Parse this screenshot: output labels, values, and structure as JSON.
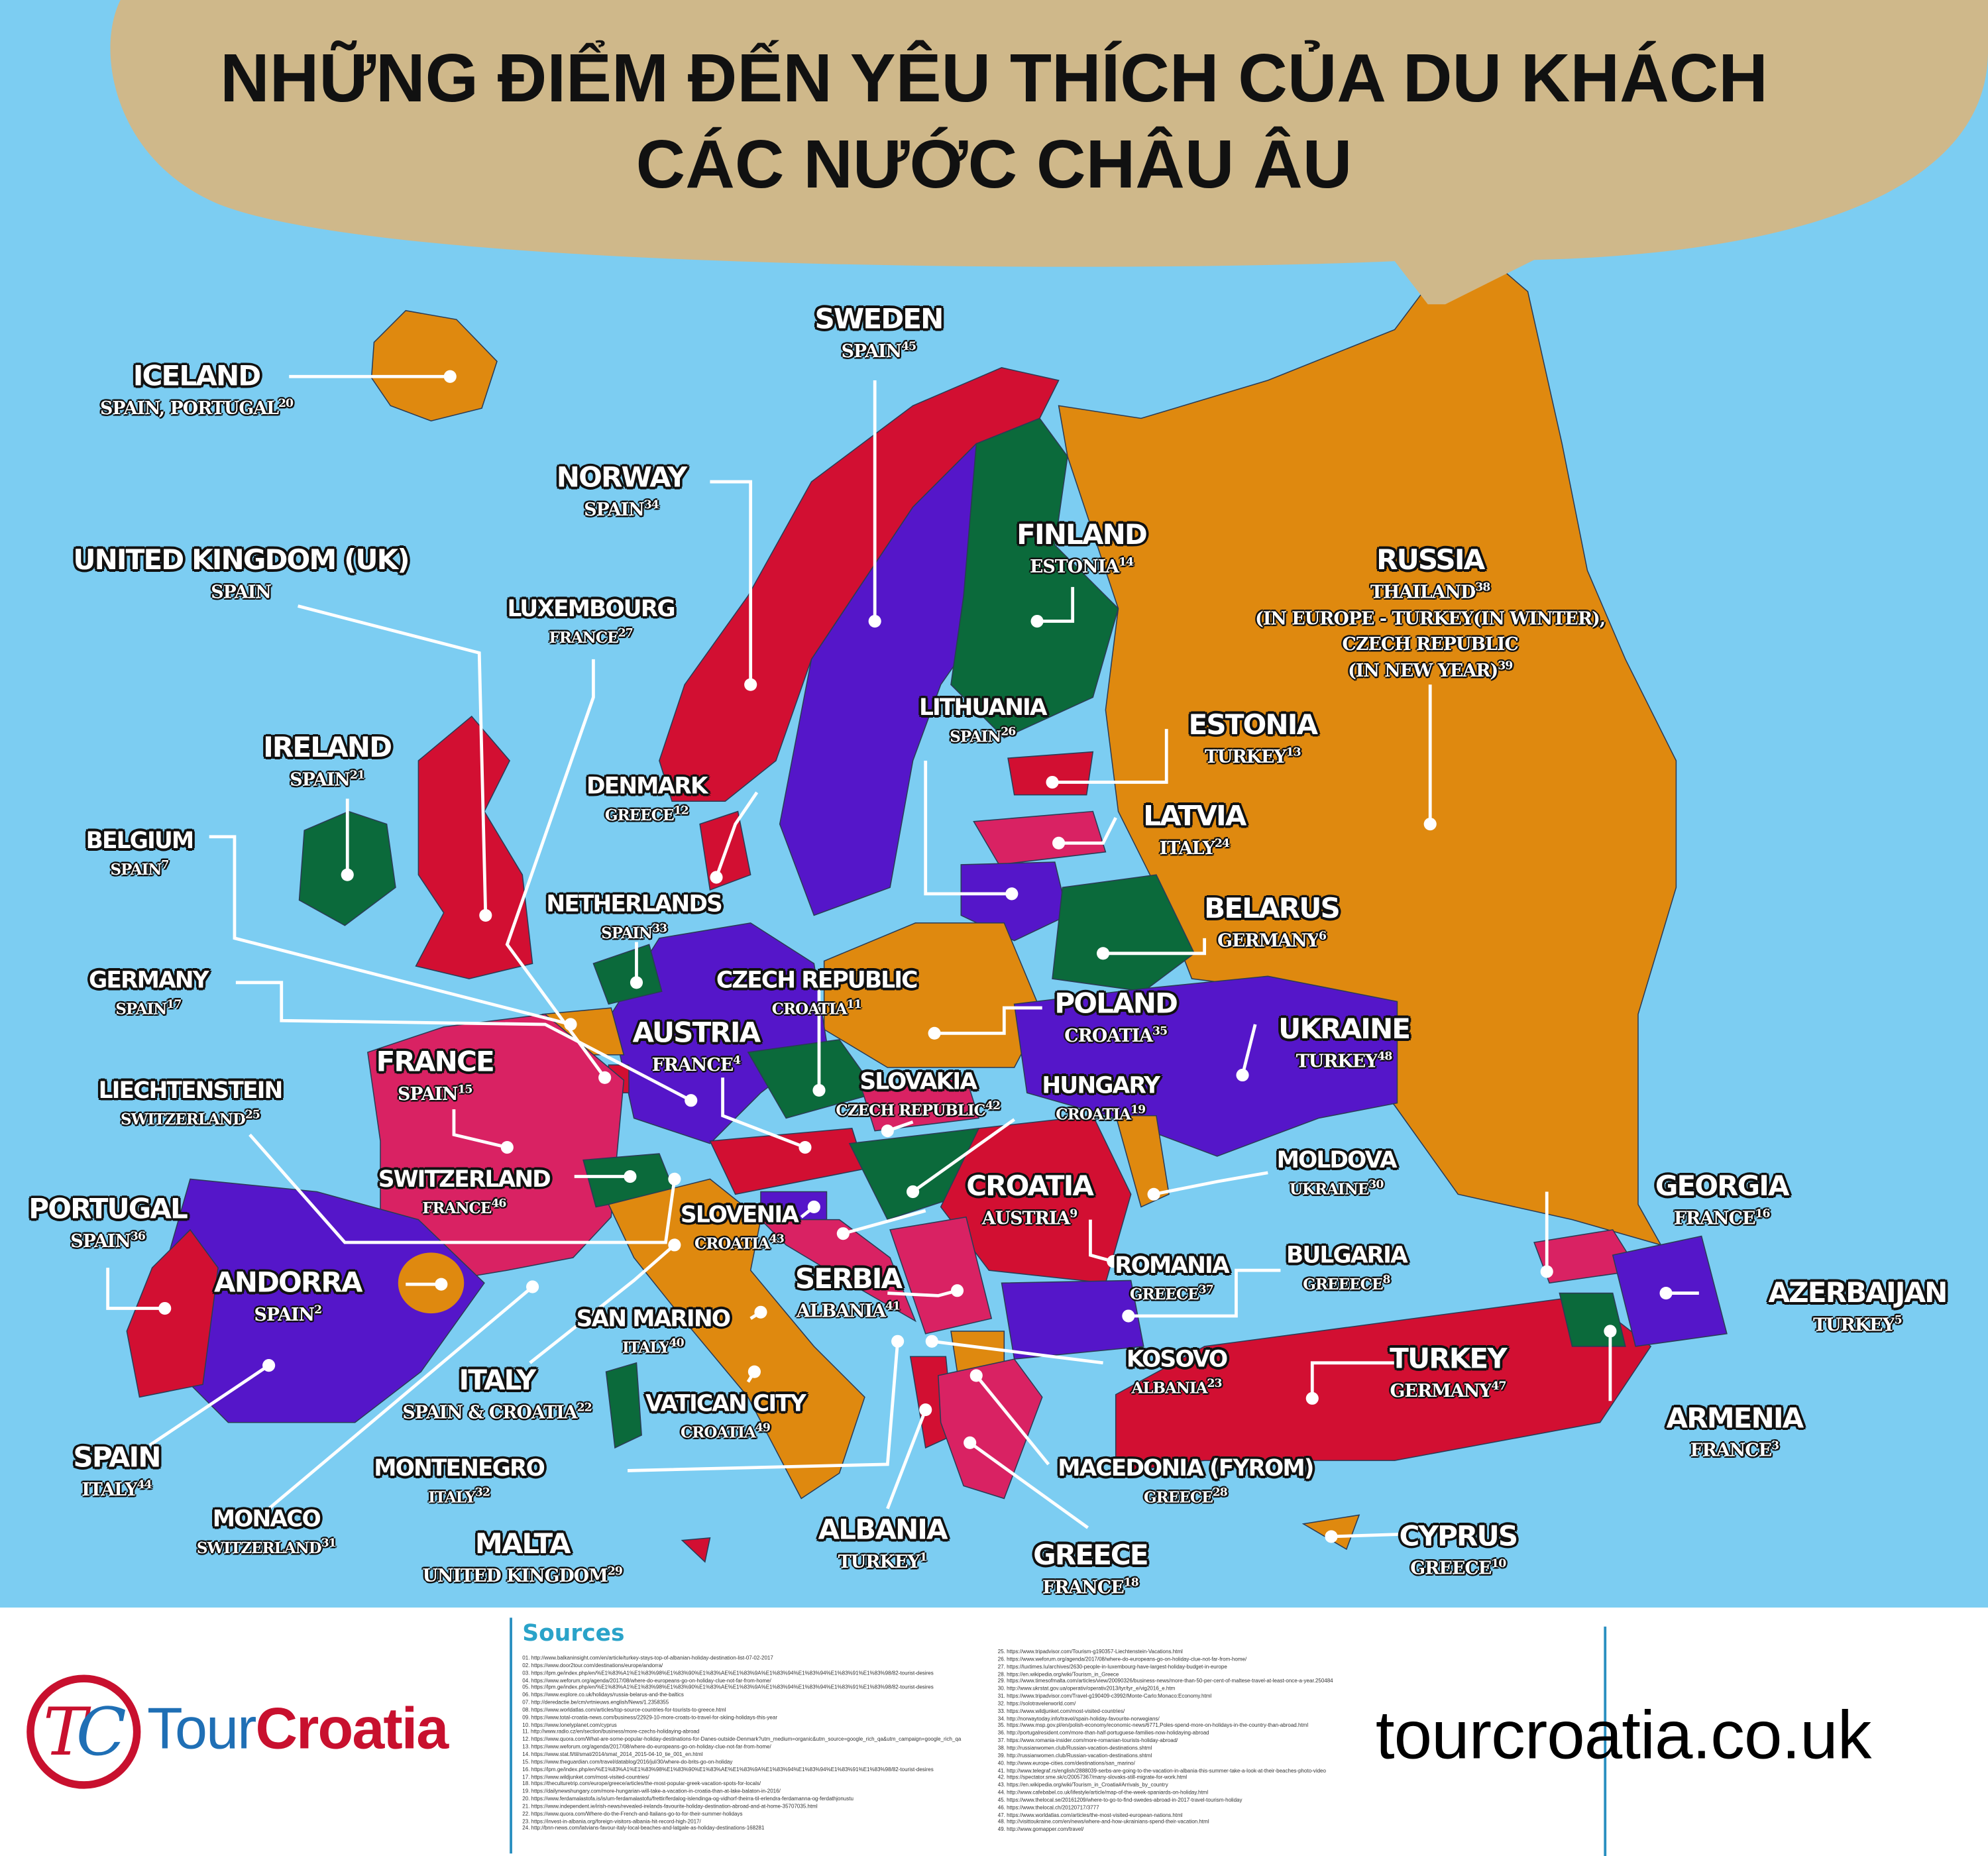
{
  "title": {
    "line1": "NHỮNG ĐIỂM ĐẾN YÊU THÍCH CỦA DU KHÁCH",
    "line2": "CÁC NƯỚC CHÂU ÂU"
  },
  "colors": {
    "sea": "#7ccdf2",
    "bubble": "#cfb88a",
    "orange": "#df890f",
    "red": "#d20f32",
    "purple": "#5516c9",
    "green": "#0b6a3b",
    "pink": "#d92263"
  },
  "countries": [
    {
      "name": "ICELAND",
      "lines": [
        {
          "text": "SPAIN, PORTUGAL",
          "ref": "20"
        }
      ]
    },
    {
      "name": "SWEDEN",
      "lines": [
        {
          "text": "SPAIN",
          "ref": "45"
        }
      ]
    },
    {
      "name": "NORWAY",
      "lines": [
        {
          "text": "SPAIN",
          "ref": "34"
        }
      ]
    },
    {
      "name": "UNITED KINGDOM (UK)",
      "lines": [
        {
          "text": "SPAIN",
          "ref": ""
        }
      ]
    },
    {
      "name": "FINLAND",
      "lines": [
        {
          "text": "ESTONIA",
          "ref": "14"
        }
      ]
    },
    {
      "name": "RUSSIA",
      "lines": [
        {
          "text": "THAILAND",
          "ref": "38"
        },
        {
          "text": "(IN EUROPE - TURKEY(IN WINTER),",
          "ref": ""
        },
        {
          "text": "CZECH REPUBLIC",
          "ref": ""
        },
        {
          "text": "(IN NEW YEAR)",
          "ref": "39"
        }
      ]
    },
    {
      "name": "LUXEMBOURG",
      "lines": [
        {
          "text": "FRANCE",
          "ref": "27"
        }
      ]
    },
    {
      "name": "IRELAND",
      "lines": [
        {
          "text": "SPAIN",
          "ref": "21"
        }
      ]
    },
    {
      "name": "LITHUANIA",
      "lines": [
        {
          "text": "SPAIN",
          "ref": "26"
        }
      ]
    },
    {
      "name": "ESTONIA",
      "lines": [
        {
          "text": "TURKEY",
          "ref": "13"
        }
      ]
    },
    {
      "name": "DENMARK",
      "lines": [
        {
          "text": "GREECE",
          "ref": "12"
        }
      ]
    },
    {
      "name": "BELGIUM",
      "lines": [
        {
          "text": "SPAIN",
          "ref": "7"
        }
      ]
    },
    {
      "name": "LATVIA",
      "lines": [
        {
          "text": "ITALY",
          "ref": "24"
        }
      ]
    },
    {
      "name": "NETHERLANDS",
      "lines": [
        {
          "text": "SPAIN",
          "ref": "33"
        }
      ]
    },
    {
      "name": "BELARUS",
      "lines": [
        {
          "text": "GERMANY",
          "ref": "6"
        }
      ]
    },
    {
      "name": "GERMANY",
      "lines": [
        {
          "text": "SPAIN",
          "ref": "17"
        }
      ]
    },
    {
      "name": "CZECH REPUBLIC",
      "lines": [
        {
          "text": "CROATIA",
          "ref": "11"
        }
      ]
    },
    {
      "name": "POLAND",
      "lines": [
        {
          "text": "CROATIA",
          "ref": "35"
        }
      ]
    },
    {
      "name": "UKRAINE",
      "lines": [
        {
          "text": "TURKEY",
          "ref": "48"
        }
      ]
    },
    {
      "name": "AUSTRIA",
      "lines": [
        {
          "text": "FRANCE",
          "ref": "4"
        }
      ]
    },
    {
      "name": "FRANCE",
      "lines": [
        {
          "text": "SPAIN",
          "ref": "15"
        }
      ]
    },
    {
      "name": "SLOVAKIA",
      "lines": [
        {
          "text": "CZECH REPUBLIC",
          "ref": "42"
        }
      ]
    },
    {
      "name": "HUNGARY",
      "lines": [
        {
          "text": "CROATIA",
          "ref": "19"
        }
      ]
    },
    {
      "name": "LIECHTENSTEIN",
      "lines": [
        {
          "text": "SWITZERLAND",
          "ref": "25"
        }
      ]
    },
    {
      "name": "SWITZERLAND",
      "lines": [
        {
          "text": "FRANCE",
          "ref": "46"
        }
      ]
    },
    {
      "name": "MOLDOVA",
      "lines": [
        {
          "text": "UKRAINE",
          "ref": "30"
        }
      ]
    },
    {
      "name": "CROATIA",
      "lines": [
        {
          "text": "AUSTRIA",
          "ref": "9"
        }
      ]
    },
    {
      "name": "GEORGIA",
      "lines": [
        {
          "text": "FRANCE",
          "ref": "16"
        }
      ]
    },
    {
      "name": "PORTUGAL",
      "lines": [
        {
          "text": "SPAIN",
          "ref": "36"
        }
      ]
    },
    {
      "name": "SLOVENIA",
      "lines": [
        {
          "text": "CROATIA",
          "ref": "43"
        }
      ]
    },
    {
      "name": "ROMANIA",
      "lines": [
        {
          "text": "GREECE",
          "ref": "37"
        }
      ]
    },
    {
      "name": "BULGARIA",
      "lines": [
        {
          "text": "GREEECE",
          "ref": "8"
        }
      ]
    },
    {
      "name": "ANDORRA",
      "lines": [
        {
          "text": "SPAIN",
          "ref": "2"
        }
      ]
    },
    {
      "name": "AZERBAIJAN",
      "lines": [
        {
          "text": "TURKEY",
          "ref": "5"
        }
      ]
    },
    {
      "name": "SERBIA",
      "lines": [
        {
          "text": "ALBANIA",
          "ref": "41"
        }
      ]
    },
    {
      "name": "SAN MARINO",
      "lines": [
        {
          "text": "ITALY",
          "ref": "40"
        }
      ]
    },
    {
      "name": "KOSOVO",
      "lines": [
        {
          "text": "ALBANIA",
          "ref": "23"
        }
      ]
    },
    {
      "name": "TURKEY",
      "lines": [
        {
          "text": "GERMANY",
          "ref": "47"
        }
      ]
    },
    {
      "name": "ITALY",
      "lines": [
        {
          "text": "SPAIN & CROATIA",
          "ref": "22"
        }
      ]
    },
    {
      "name": "VATICAN CITY",
      "lines": [
        {
          "text": "CROATIA",
          "ref": "49"
        }
      ]
    },
    {
      "name": "ARMENIA",
      "lines": [
        {
          "text": "FRANCE",
          "ref": "3"
        }
      ]
    },
    {
      "name": "SPAIN",
      "lines": [
        {
          "text": "ITALY",
          "ref": "44"
        }
      ]
    },
    {
      "name": "MONTENEGRO",
      "lines": [
        {
          "text": "ITALY",
          "ref": "32"
        }
      ]
    },
    {
      "name": "MACEDONIA (FYROM)",
      "lines": [
        {
          "text": "GREECE",
          "ref": "28"
        }
      ]
    },
    {
      "name": "MONACO",
      "lines": [
        {
          "text": "SWITZERLAND",
          "ref": "31"
        }
      ]
    },
    {
      "name": "MALTA",
      "lines": [
        {
          "text": "UNITED KINGDOM",
          "ref": "29"
        }
      ]
    },
    {
      "name": "ALBANIA",
      "lines": [
        {
          "text": "TURKEY",
          "ref": "1"
        }
      ]
    },
    {
      "name": "GREECE",
      "lines": [
        {
          "text": "FRANCE",
          "ref": "18"
        }
      ]
    },
    {
      "name": "CYPRUS",
      "lines": [
        {
          "text": "GREECE",
          "ref": "10"
        }
      ]
    }
  ],
  "footer": {
    "logo": {
      "mark": "TC",
      "word1": "Tour",
      "word2": "Croatia"
    },
    "sources_title": "Sources",
    "sources": [
      "01. http://www.balkaninsight.com/en/article/turkey-stays-top-of-albanian-holiday-destination-list-07-02-2017",
      "02. https://www.door2tour.com/destinations/europe/andorra/",
      "03. https://lpm.ge/index.php/en/%E1%83%A1%E1%83%98%E1%83%90%E1%83%AE%E1%83%9A%E1%83%94%E1%83%94%E1%83%91%E1%83%98/82-tourist-desires",
      "04. https://www.weforum.org/agenda/2017/08/where-do-europeans-go-on-holiday-clue-not-far-from-home/",
      "05. https://lpm.ge/index.php/en/%E1%83%A1%E1%83%98%E1%83%90%E1%83%AE%E1%83%9A%E1%83%94%E1%83%94%E1%83%91%E1%83%98/82-tourist-desires",
      "06. https://www.explore.co.uk/holidays/russia-belarus-and-the-baltics",
      "07. http://deredactie.be/cm/vrtnieuws.english/News/1.2358355",
      "08. https://www.worldatlas.com/articles/top-source-countries-for-tourists-to-greece.html",
      "09. https://www.total-croatia-news.com/business/22929-10-more-croats-to-travel-for-skiing-holidays-this-year",
      "10. https://www.lonelyplanet.com/cyprus",
      "11. http://www.radio.cz/en/section/business/more-czechs-holidaying-abroad",
      "12. https://www.quora.com/What-are-some-popular-holiday-destinations-for-Danes-outside-Denmark?utm_medium=organic&utm_source=google_rich_qa&utm_campaign=google_rich_qa",
      "13. https://www.weforum.org/agenda/2017/08/where-do-europeans-go-on-holiday-clue-not-far-from-home/",
      "14. https://www.stat.fi/til/smat/2014/smat_2014_2015-04-10_tie_001_en.html",
      "15. https://www.theguardian.com/travel/datablog/2016/jul/30/where-do-brits-go-on-holiday",
      "16. https://lpm.ge/index.php/en/%E1%83%A1%E1%83%98%E1%83%90%E1%83%AE%E1%83%9A%E1%83%94%E1%83%94%E1%83%91%E1%83%98/82-tourist-desires",
      "17. https://www.wildjunket.com/most-visited-countries/",
      "18. https://theculturetrip.com/europe/greece/articles/the-most-popular-greek-vacation-spots-for-locals/",
      "19. https://dailynewshungary.com/more-hungarian-will-take-a-vacation-in-croatia-than-at-lake-balaton-in-2016/",
      "20. https://www.ferdamalastofa.is/is/um-ferdamalastofu/frettir/ferdalog-islendinga-og-vidhorf-theirra-til-erlendra-ferdamanna-og-ferdathjonustu",
      "21. https://www.independent.ie/irish-news/revealed-irelands-favourite-holiday-destination-abroad-and-at-home-35707035.html",
      "22. https://www.quora.com/Where-do-the-French-and-Italians-go-to-for-their-summer-holidays",
      "23. https://invest-in-albania.org/foreign-visitors-albania-hit-record-high-2017/",
      "24. http://bnn-news.com/latvians-favour-italy-local-beaches-and-latgale-as-holiday-destinations-168281",
      "25. https://www.tripadvisor.com/Tourism-g190357-Liechtenstein-Vacations.html",
      "26. https://www.weforum.org/agenda/2017/08/where-do-europeans-go-on-holiday-clue-not-far-from-home/",
      "27. https://luxtimes.lu/archives/2630-people-in-luxembourg-have-largest-holiday-budget-in-europe",
      "28. https://en.wikipedia.org/wiki/Tourism_in_Greece",
      "29. https://www.timesofmalta.com/articles/view/20090326/business-news/more-than-50-per-cent-of-maltese-travel-at-least-once-a-year.250484",
      "30. http://www.ukrstat.gov.ua/operativ/operativ2013/tyr/tyr_e/vig2016_e.htm",
      "31. https://www.tripadvisor.com/Travel-g190409-c3992/Monte-Carlo:Monaco:Economy.html",
      "32. https://solotravelerworld.com/",
      "33. https://www.wildjunket.com/most-visited-countries/",
      "34. http://norwaytoday.info/travel/spain-holiday-favourite-norwegians/",
      "35. https://www.msp.gov.pl/en/polish-economy/economic-news/6771,Poles-spend-more-on-holidays-in-the-country-than-abroad.html",
      "36. http://portugalresident.com/more-than-half-portuguese-families-now-holidaying-abroad",
      "37. https://www.romania-insider.com/more-romanian-tourists-holiday-abroad/",
      "38. http://russianwomen.club/Russian-vacation-destinations.shtml",
      "39. http://russianwomen.club/Russian-vacation-destinations.shtml",
      "40. http://www.europe-cities.com/destinations/san_marino/",
      "41. http://www.telegraf.rs/english/2888039-serbs-are-going-to-the-vacation-in-albania-this-summer-take-a-look-at-their-beaches-photo-video",
      "42. https://spectator.sme.sk/c/20057367/many-slovaks-still-migrate-for-work.html",
      "43. https://en.wikipedia.org/wiki/Tourism_in_Croatia#Arrivals_by_country",
      "44. http://www.cafebabel.co.uk/lifestyle/article/map-of-the-week-spaniards-on-holiday.html",
      "45. https://www.thelocal.se/20161209/where-to-go-to-find-swedes-abroad-in-2017-travel-tourism-holiday",
      "46. https://www.thelocal.ch/20120717/3777",
      "47. https://www.worldatlas.com/articles/the-most-visited-european-nations.html",
      "48. http://visittoukraine.com/en/news/where-and-how-ukrainians-spend-their-vacation.html",
      "49. http://www.gomapper.com/travel/"
    ],
    "website": "tourcroatia.co.uk"
  }
}
